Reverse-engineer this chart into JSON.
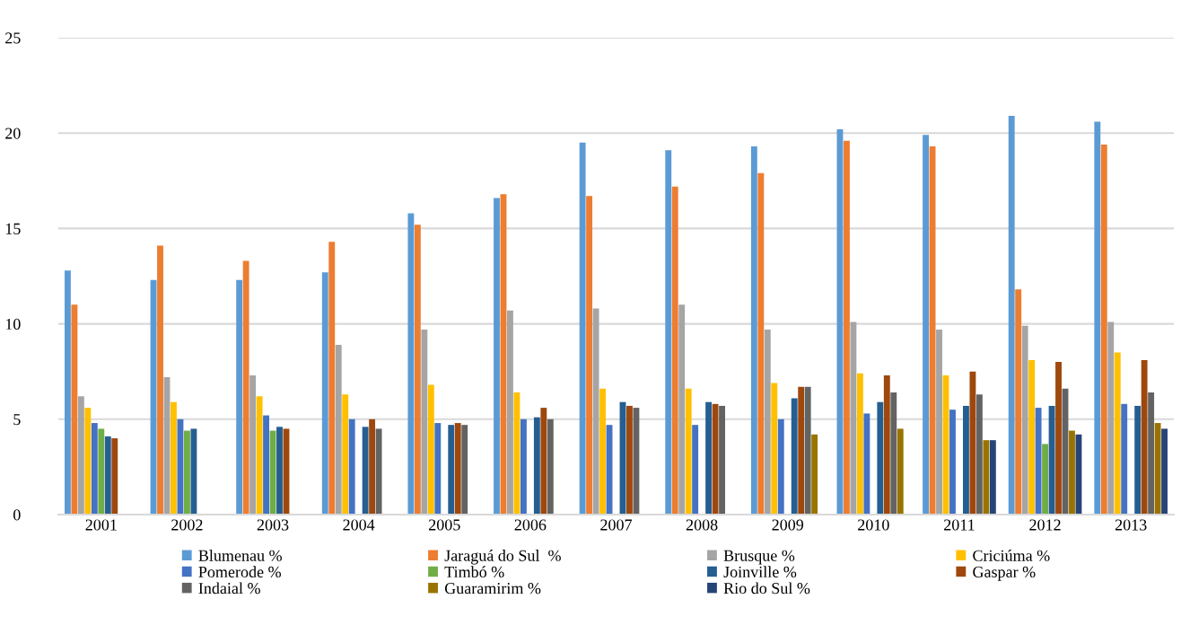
{
  "chart_data": {
    "type": "bar",
    "categories": [
      "2001",
      "2002",
      "2003",
      "2004",
      "2005",
      "2006",
      "2007",
      "2008",
      "2009",
      "2010",
      "2011",
      "2012",
      "2013"
    ],
    "series": [
      {
        "name": "Blumenau %",
        "color": "#5b9bd5",
        "values": [
          12.8,
          12.3,
          12.3,
          12.7,
          15.8,
          16.6,
          19.5,
          19.1,
          19.3,
          20.2,
          19.9,
          20.9,
          20.6
        ]
      },
      {
        "name": "Jaraguá do Sul  %",
        "color": "#ed7d31",
        "values": [
          11.0,
          14.1,
          13.3,
          14.3,
          15.2,
          16.8,
          16.7,
          17.2,
          17.9,
          19.6,
          19.3,
          11.8,
          19.4
        ]
      },
      {
        "name": "Brusque %",
        "color": "#a5a5a5",
        "values": [
          6.2,
          7.2,
          7.3,
          8.9,
          9.7,
          10.7,
          10.8,
          11.0,
          9.7,
          10.1,
          9.7,
          9.9,
          10.1
        ]
      },
      {
        "name": "Criciúma %",
        "color": "#ffc000",
        "values": [
          5.6,
          5.9,
          6.2,
          6.3,
          6.8,
          6.4,
          6.6,
          6.6,
          6.9,
          7.4,
          7.3,
          8.1,
          8.5
        ]
      },
      {
        "name": "Pomerode %",
        "color": "#4472c4",
        "values": [
          4.8,
          5.0,
          5.2,
          5.0,
          4.8,
          5.0,
          4.7,
          4.7,
          5.0,
          5.3,
          5.5,
          5.6,
          5.8
        ]
      },
      {
        "name": "Timbó %",
        "color": "#70ad47",
        "values": [
          4.5,
          4.4,
          4.4,
          null,
          null,
          null,
          null,
          null,
          null,
          null,
          null,
          3.7,
          null
        ]
      },
      {
        "name": "Joinville %",
        "color": "#255e91",
        "values": [
          4.1,
          4.5,
          4.6,
          4.6,
          4.7,
          5.1,
          5.9,
          5.9,
          6.1,
          5.9,
          5.7,
          5.7,
          5.7
        ]
      },
      {
        "name": "Gaspar %",
        "color": "#9e480e",
        "values": [
          4.0,
          null,
          4.5,
          5.0,
          4.8,
          5.6,
          5.7,
          5.8,
          6.7,
          7.3,
          7.5,
          8.0,
          8.1
        ]
      },
      {
        "name": "Indaial %",
        "color": "#636363",
        "values": [
          null,
          null,
          null,
          4.5,
          4.7,
          5.0,
          5.6,
          5.7,
          6.7,
          6.4,
          6.3,
          6.6,
          6.4
        ]
      },
      {
        "name": "Guaramirim %",
        "color": "#997300",
        "values": [
          null,
          null,
          null,
          null,
          null,
          null,
          null,
          null,
          4.2,
          4.5,
          3.9,
          4.4,
          4.8
        ]
      },
      {
        "name": "Rio do Sul %",
        "color": "#264478",
        "values": [
          null,
          null,
          null,
          null,
          null,
          null,
          null,
          null,
          null,
          null,
          3.9,
          4.2,
          4.5
        ]
      }
    ],
    "ylim": [
      0,
      25
    ],
    "yticks": [
      0,
      5,
      10,
      15,
      20,
      25
    ],
    "grid": "y",
    "legend": "bottom"
  }
}
